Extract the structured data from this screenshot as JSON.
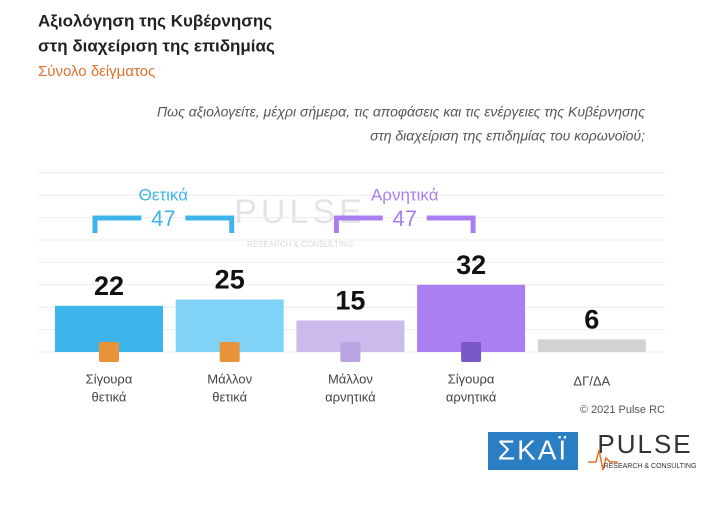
{
  "chart_data": {
    "type": "bar",
    "title": [
      "Αξιολόγηση της Κυβέρνησης",
      "στη διαχείριση της επιδημίας"
    ],
    "subtitle": "Σύνολο δείγματος",
    "question": [
      "Πως αξιολογείτε, μέχρι σήμερα, τις αποφάσεις και τις ενέργειες της Κυβέρνησης",
      "στη διαχείριση της επιδημίας του κορωνοϊού;"
    ],
    "categories": [
      [
        "Σίγουρα",
        "θετικά"
      ],
      [
        "Μάλλον",
        "θετικά"
      ],
      [
        "Μάλλον",
        "αρνητικά"
      ],
      [
        "Σίγουρα",
        "αρνητικά"
      ],
      [
        "ΔΓ/ΔΑ"
      ]
    ],
    "values": [
      22,
      25,
      15,
      32,
      6
    ],
    "colors": [
      "#3db5ea",
      "#80d3f7",
      "#cbbbec",
      "#aa80f0",
      "#d2d2d2"
    ],
    "groups": [
      {
        "label": "Θετικά",
        "value": 47,
        "color": "#3db5ea"
      },
      {
        "label": "Αρνητικά",
        "value": 47,
        "color": "#a97ff0"
      }
    ],
    "ylim": [
      0,
      85
    ],
    "grid": true,
    "watermark": [
      "PULSE",
      "RESEARCH & CONSULTING"
    ],
    "copyright": "© 2021 Pulse RC",
    "logos": {
      "skai": "ΣΚΑΪ",
      "pulse": "PULSE",
      "pulse_sub": "RESEARCH & CONSULTING"
    }
  }
}
